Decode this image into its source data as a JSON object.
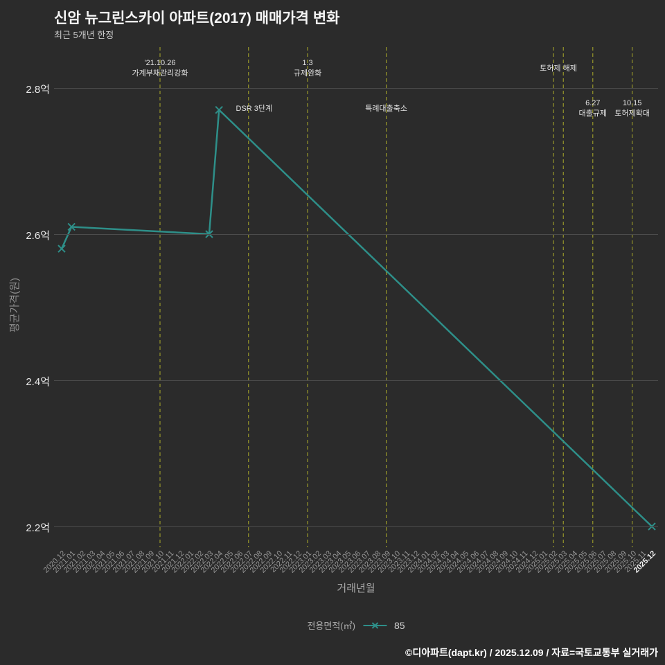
{
  "header": {
    "title": "신암 뉴그린스카이 아파트(2017) 매매가격 변화",
    "subtitle": "최근 5개년 한정"
  },
  "chart_data": {
    "type": "line",
    "title": "신암 뉴그린스카이 아파트(2017) 매매가격 변화",
    "subtitle": "최근 5개년 한정",
    "xlabel": "거래년월",
    "ylabel": "평균가격(원)",
    "y_range": [
      2.2,
      2.8
    ],
    "y_unit": "억",
    "grid": true,
    "legend_position": "bottom",
    "y_ticks": [
      {
        "label": "2.8억",
        "value": 2.8
      },
      {
        "label": "2.6억",
        "value": 2.6
      },
      {
        "label": "2.4억",
        "value": 2.4
      },
      {
        "label": "2.2억",
        "value": 2.2
      }
    ],
    "x_ticks": [
      "2020.12",
      "2021.01",
      "2021.02",
      "2021.03",
      "2021.04",
      "2021.05",
      "2021.06",
      "2021.07",
      "2021.08",
      "2021.09",
      "2021.10",
      "2021.11",
      "2021.12",
      "2022.01",
      "2022.02",
      "2022.03",
      "2022.04",
      "2022.05",
      "2022.06",
      "2022.07",
      "2022.08",
      "2022.09",
      "2022.10",
      "2022.11",
      "2022.12",
      "2023.01",
      "2023.02",
      "2023.03",
      "2023.04",
      "2023.05",
      "2023.06",
      "2023.07",
      "2023.08",
      "2023.09",
      "2023.10",
      "2023.11",
      "2023.12",
      "2024.01",
      "2024.02",
      "2024.03",
      "2024.04",
      "2024.05",
      "2024.06",
      "2024.07",
      "2024.08",
      "2024.09",
      "2024.10",
      "2024.11",
      "2024.12",
      "2025.01",
      "2025.02",
      "2025.03",
      "2025.04",
      "2025.05",
      "2025.06",
      "2025.07",
      "2025.08",
      "2025.09",
      "2025.10",
      "2025.11",
      "2025.12"
    ],
    "series": [
      {
        "name": "85",
        "color": "#2e8f89",
        "points": [
          {
            "x": "2020.12",
            "y": 2.58
          },
          {
            "x": "2021.01",
            "y": 2.61
          },
          {
            "x": "2022.03",
            "y": 2.6
          },
          {
            "x": "2022.04",
            "y": 2.77
          },
          {
            "x": "2025.12",
            "y": 2.2
          }
        ]
      }
    ],
    "event_lines": {
      "color": "#adad2a",
      "months": [
        "2021.10",
        "2022.07",
        "2023.01",
        "2023.09",
        "2025.02",
        "2025.03",
        "2025.06",
        "2025.10"
      ]
    },
    "annotations": [
      {
        "month": "2021.10",
        "lines": [
          "'21.10.26",
          "가계부채관리강화"
        ],
        "row": "top",
        "dx": 0
      },
      {
        "month": "2022.07",
        "lines": [
          "DSR 3단계"
        ],
        "row": "mid_single",
        "dx": 8
      },
      {
        "month": "2023.01",
        "lines": [
          "1.3",
          "규제완화"
        ],
        "row": "top",
        "dx": 0
      },
      {
        "month": "2023.09",
        "lines": [
          "특례대출축소"
        ],
        "row": "mid_single",
        "dx": 0
      },
      {
        "month": "2025.02",
        "lines": [
          "토허제 해제"
        ],
        "row": "top_single",
        "dx": 7
      },
      {
        "month": "2025.06",
        "lines": [
          "6.27",
          "대출규제"
        ],
        "row": "mid",
        "dx": 0
      },
      {
        "month": "2025.10",
        "lines": [
          "10.15",
          "토허제확대"
        ],
        "row": "mid",
        "dx": 0
      }
    ],
    "legend": {
      "label": "전용면적(㎡)",
      "value": "85"
    }
  },
  "footer": {
    "credit": "©디아파트(dapt.kr) / 2025.12.09 / 자료=국토교통부 실거래가"
  }
}
